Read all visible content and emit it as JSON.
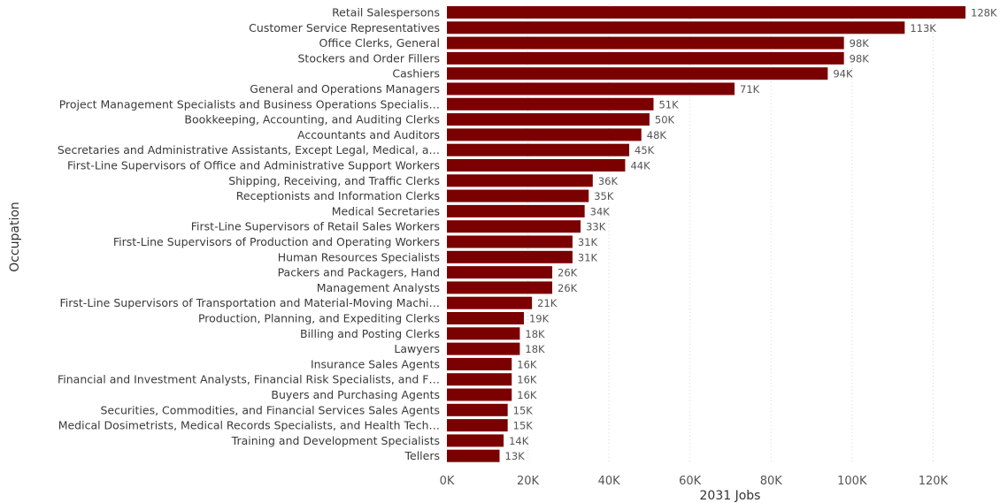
{
  "chart_data": {
    "type": "bar",
    "orientation": "horizontal",
    "xlabel": "2031 Jobs",
    "ylabel": "Occupation",
    "xlim": [
      0,
      128000
    ],
    "x_ticks": [
      0,
      20000,
      40000,
      60000,
      80000,
      100000,
      120000
    ],
    "x_tick_labels": [
      "0K",
      "20K",
      "40K",
      "60K",
      "80K",
      "100K",
      "120K"
    ],
    "grid": "vertical dotted",
    "bar_color": "#7b0000",
    "categories": [
      "Retail Salespersons",
      "Customer Service Representatives",
      "Office Clerks, General",
      "Stockers and Order Fillers",
      "Cashiers",
      "General and Operations Managers",
      "Project Management Specialists and Business Operations Specialis…",
      "Bookkeeping, Accounting, and Auditing Clerks",
      "Accountants and Auditors",
      "Secretaries and Administrative Assistants, Except Legal, Medical, a…",
      "First-Line Supervisors of Office and Administrative Support Workers",
      "Shipping, Receiving, and Traffic Clerks",
      "Receptionists and Information Clerks",
      "Medical Secretaries",
      "First-Line Supervisors of Retail Sales Workers",
      "First-Line Supervisors of Production and Operating Workers",
      "Human Resources Specialists",
      "Packers and Packagers, Hand",
      "Management Analysts",
      "First-Line Supervisors of Transportation and Material-Moving Machi…",
      "Production, Planning, and Expediting Clerks",
      "Billing and Posting Clerks",
      "Lawyers",
      "Insurance Sales Agents",
      "Financial and Investment Analysts, Financial Risk Specialists, and F…",
      "Buyers and Purchasing Agents",
      "Securities, Commodities, and Financial Services Sales Agents",
      "Medical Dosimetrists, Medical Records Specialists, and Health Tech…",
      "Training and Development Specialists",
      "Tellers"
    ],
    "values": [
      128000,
      113000,
      98000,
      98000,
      94000,
      71000,
      51000,
      50000,
      48000,
      45000,
      44000,
      36000,
      35000,
      34000,
      33000,
      31000,
      31000,
      26000,
      26000,
      21000,
      19000,
      18000,
      18000,
      16000,
      16000,
      16000,
      15000,
      15000,
      14000,
      13000
    ],
    "value_labels": [
      "128K",
      "113K",
      "98K",
      "98K",
      "94K",
      "71K",
      "51K",
      "50K",
      "48K",
      "45K",
      "44K",
      "36K",
      "35K",
      "34K",
      "33K",
      "31K",
      "31K",
      "26K",
      "26K",
      "21K",
      "19K",
      "18K",
      "18K",
      "16K",
      "16K",
      "16K",
      "15K",
      "15K",
      "14K",
      "13K"
    ]
  }
}
